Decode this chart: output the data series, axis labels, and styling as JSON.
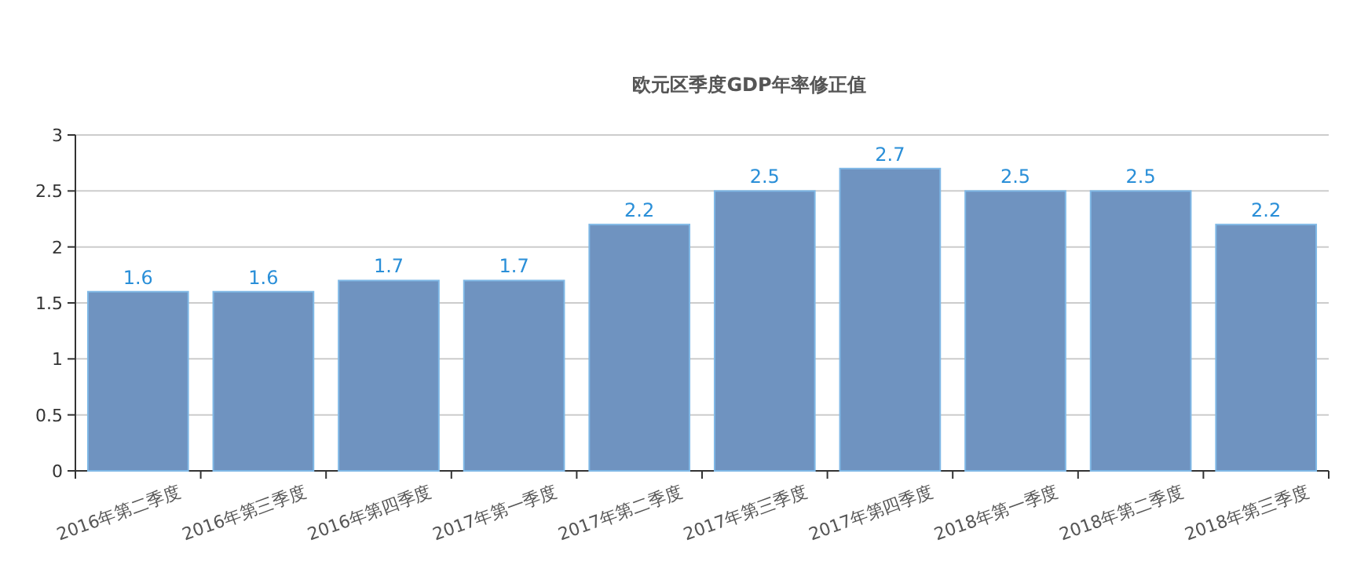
{
  "chart_data": {
    "type": "bar",
    "title": "欧元区季度GDP年率修正值",
    "categories": [
      "2016年第二季度",
      "2016年第三季度",
      "2016年第四季度",
      "2017年第一季度",
      "2017年第二季度",
      "2017年第三季度",
      "2017年第四季度",
      "2018年第一季度",
      "2018年第二季度",
      "2018年第三季度"
    ],
    "values": [
      1.6,
      1.6,
      1.7,
      1.7,
      2.2,
      2.5,
      2.7,
      2.5,
      2.5,
      2.2
    ],
    "color": "#6f93c0",
    "ylim": [
      0,
      3
    ],
    "yticks": [
      0,
      0.5,
      1,
      1.5,
      2,
      2.5,
      3
    ],
    "grid": "y",
    "data_labels": true
  }
}
